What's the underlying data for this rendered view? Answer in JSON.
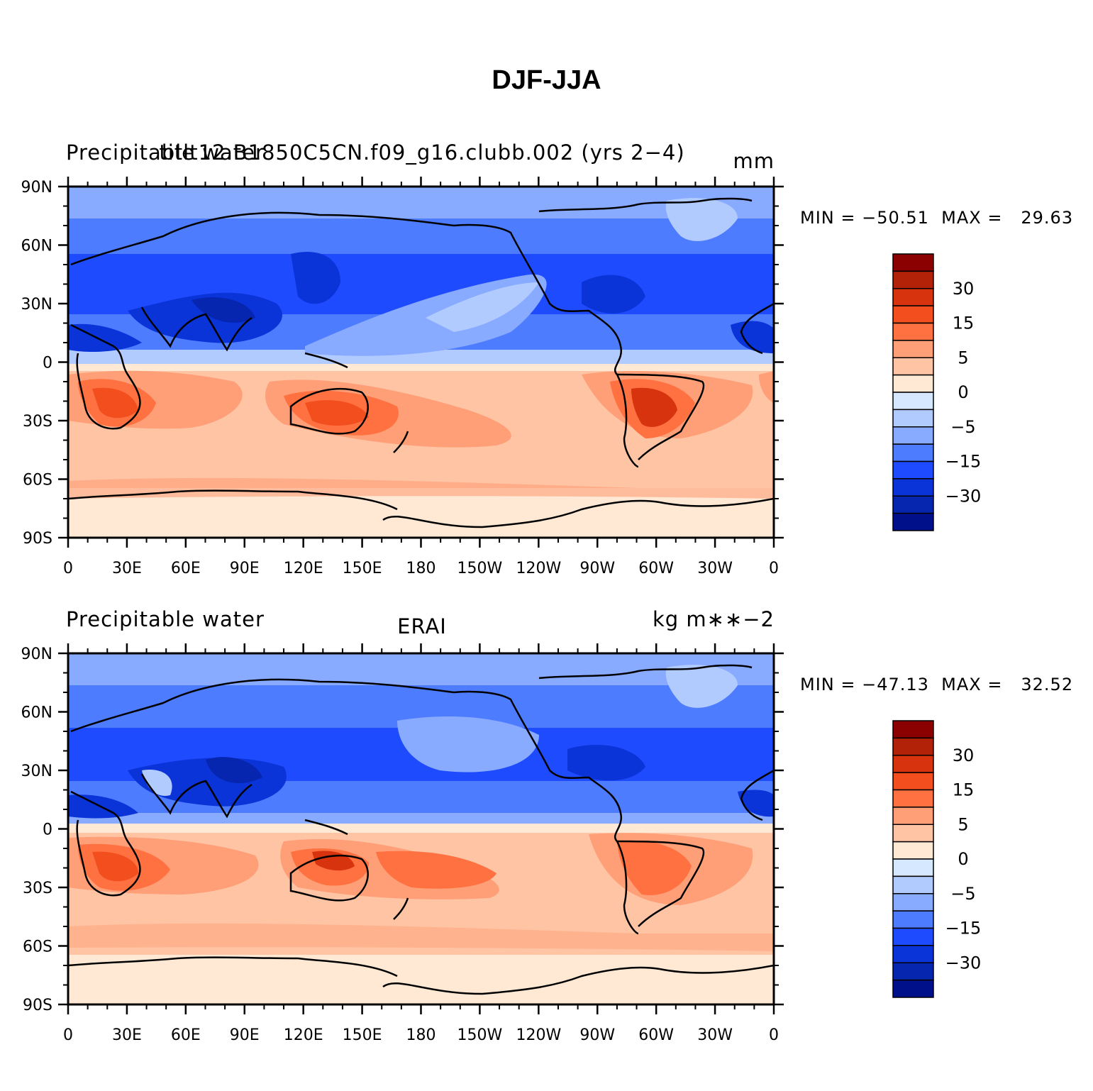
{
  "title": "DJF-JJA",
  "x_ticks": [
    "0",
    "30E",
    "60E",
    "90E",
    "120E",
    "150E",
    "180",
    "150W",
    "120W",
    "90W",
    "60W",
    "30W",
    "0"
  ],
  "y_ticks": [
    "90N",
    "60N",
    "30N",
    "0",
    "30S",
    "60S",
    "90S"
  ],
  "colorbar": {
    "levels": [
      -30,
      -15,
      -5,
      0,
      5,
      15,
      30
    ],
    "tick_labels": [
      "30",
      "15",
      "5",
      "0",
      "−5",
      "−15",
      "−30"
    ],
    "colors": [
      "#8b0000",
      "#b22208",
      "#d7330e",
      "#f24e1e",
      "#ff7140",
      "#ff9f78",
      "#ffc4a4",
      "#ffe8d4",
      "#d6e8ff",
      "#b2cbff",
      "#88aaff",
      "#4e7cff",
      "#1f4bff",
      "#0a33d8",
      "#0626b0",
      "#00108a"
    ]
  },
  "panels": [
    {
      "left_title": "Precipitable water",
      "center_title": "titlt12.B1850C5CN.f09_g16.clubb.002 (yrs 2−4)",
      "right_title": "mm",
      "min_label": "MIN = −50.51  MAX =",
      "max_label": "29.63"
    },
    {
      "left_title": "Precipitable water",
      "center_title": "ERAI",
      "right_title": "kg m∗∗−2",
      "min_label": "MIN = −47.13  MAX =",
      "max_label": "32.52"
    }
  ]
}
